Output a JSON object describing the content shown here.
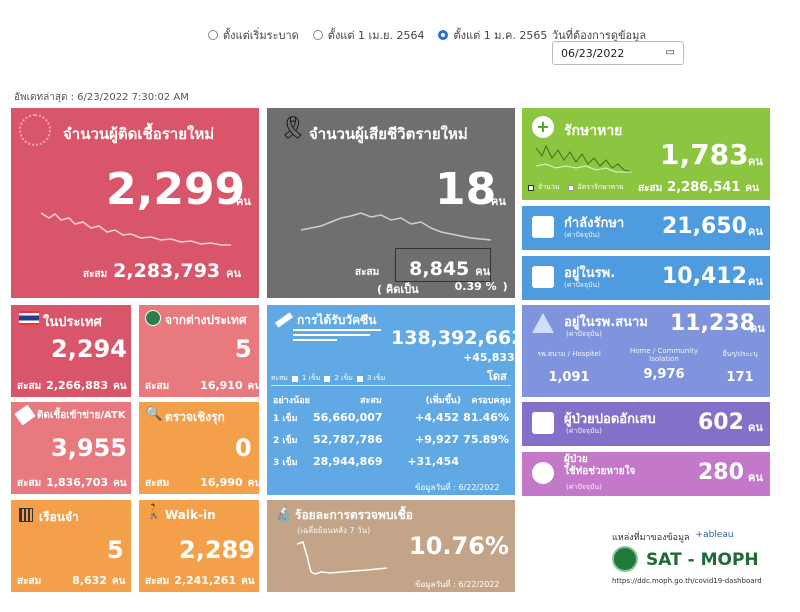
{
  "filters": {
    "options": [
      "ตั้งแต่เริ่มระบาด",
      "ตั้งแต่ 1 เม.ย. 2564",
      "ตั้งแต่ 1 ม.ค. 2565"
    ],
    "date_label": "วันที่ต้องการดูข้อมูล",
    "date_value": "06/23/2022"
  },
  "updated": "อัพเดทล่าสุด : 6/23/2022 7:30:02 AM",
  "new_cases": {
    "title": "จำนวนผู้ติดเชื้อรายใหม่",
    "value": "2,299",
    "unit": "คน",
    "cum_label": "สะสม",
    "cum_value": "2,283,793",
    "cum_unit": "คน"
  },
  "deaths": {
    "title": "จำนวนผู้เสียชีวิตรายใหม่",
    "value": "18",
    "unit": "คน",
    "cum_label": "สะสม",
    "cum_value": "8,845",
    "cum_unit": "คน",
    "rate_label": "( คิดเป็น",
    "rate_value": "0.39 %",
    "rate_close": ")"
  },
  "recovered": {
    "title": "รักษาหาย",
    "value": "1,783",
    "unit": "คน",
    "legend1": "จำนวน",
    "legend2": "อัตรารักษาหาย",
    "cum_label": "สะสม",
    "cum_value": "2,286,541",
    "cum_unit": "คน"
  },
  "treating": {
    "title": "กำลังรักษา",
    "sub": "(ค่าปัจจุบัน)",
    "value": "21,650",
    "unit": "คน"
  },
  "hospital": {
    "title": "อยู่ในรพ.",
    "sub": "(ค่าปัจจุบัน)",
    "value": "10,412",
    "unit": "คน"
  },
  "field": {
    "title": "อยู่ในรพ.สนาม",
    "sub": "(ค่าปัจจุบัน)",
    "value": "11,238",
    "unit": "คน",
    "cols": [
      {
        "label": "รพ.สนาม / Hospitel",
        "value": "1,091"
      },
      {
        "label": "Home / Community Isolation",
        "value": "9,976"
      },
      {
        "label": "อื่นๆ/ประะบุ",
        "value": "171"
      }
    ]
  },
  "pneumonia": {
    "title": "ผู้ป่วยปอดอักเสบ",
    "sub": "(ค่าปัจจุบัน)",
    "value": "602",
    "unit": "คน"
  },
  "ventilator": {
    "title1": "ผู้ป่วย",
    "title2": "ใช้ท่อช่วยหายใจ",
    "sub": "(ค่าปัจจุบัน)",
    "value": "280",
    "unit": "คน"
  },
  "domestic": {
    "title": "ในประเทศ",
    "value": "2,294",
    "cum_label": "สะสม",
    "cum_value": "2,266,883",
    "cum_unit": "คน"
  },
  "overseas": {
    "title": "จากต่างประเทศ",
    "value": "5",
    "cum_label": "สะสม",
    "cum_value": "16,910",
    "cum_unit": "คน"
  },
  "atk": {
    "title": "ติดเชื้อเข้าข่าย/ATK",
    "value": "3,955",
    "cum_label": "สะสม",
    "cum_value": "1,836,703",
    "cum_unit": "คน"
  },
  "proactive": {
    "title": "ตรวจเชิงรุก",
    "value": "0",
    "cum_label": "สะสม",
    "cum_value": "16,990",
    "cum_unit": "คน"
  },
  "prison": {
    "title": "เรือนจำ",
    "value": "5",
    "cum_label": "สะสม",
    "cum_value": "8,632",
    "cum_unit": "คน"
  },
  "walkin": {
    "title": "Walk-in",
    "value": "2,289",
    "cum_label": "สะสม",
    "cum_value": "2,241,261",
    "cum_unit": "คน"
  },
  "vaccine": {
    "title": "การได้รับวัคซีน",
    "total": "138,392,662",
    "delta": "+45,833",
    "unit": "โดส",
    "legend_label": "สะสม",
    "legend": [
      "1 เข็ม",
      "2 เข็ม",
      "3 เข็ม"
    ],
    "headers": [
      "อย่างน้อย",
      "สะสม",
      "(เพิ่มขึ้น)",
      "ครอบคลุม"
    ],
    "rows": [
      {
        "dose": "1 เข็ม",
        "cum": "56,660,007",
        "inc": "+4,452",
        "cov": "81.46%"
      },
      {
        "dose": "2 เข็ม",
        "cum": "52,787,786",
        "inc": "+9,927",
        "cov": "75.89%"
      },
      {
        "dose": "3 เข็ม",
        "cum": "28,944,869",
        "inc": "+31,454",
        "cov": ""
      }
    ],
    "date": "ข้อมูลวันที่ : 6/22/2022"
  },
  "positivity": {
    "title": "ร้อยละการตรวจพบเชื้อ",
    "sub": "(เฉลี่ยย้อนหลัง 7 วัน)",
    "value": "10.76%",
    "date": "ข้อมูลวันที่ : 6/22/2022"
  },
  "source": {
    "label": "แหล่งที่มาของข้อมูล",
    "tableau": "+ableau",
    "org": "SAT - MOPH",
    "url": "https://ddc.moph.go.th/covid19-dashboard"
  }
}
